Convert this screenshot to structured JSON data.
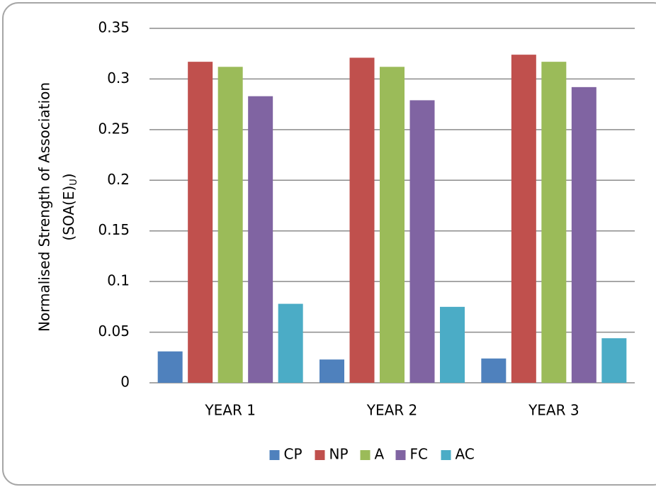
{
  "chart_data": {
    "type": "bar",
    "ylabel": "Normalised Strength of Association",
    "ylabel2": "(SOA(E)",
    "ylabel2_sub": "U",
    "ylabel2_end": ")",
    "categories": [
      "YEAR 1",
      "YEAR 2",
      "YEAR 3"
    ],
    "series": [
      {
        "name": "CP",
        "color": "#4f81bd",
        "values": [
          0.031,
          0.023,
          0.024
        ]
      },
      {
        "name": "NP",
        "color": "#c0504d",
        "values": [
          0.317,
          0.321,
          0.324
        ]
      },
      {
        "name": "A",
        "color": "#9bbb59",
        "values": [
          0.312,
          0.312,
          0.317
        ]
      },
      {
        "name": "FC",
        "color": "#8064a2",
        "values": [
          0.283,
          0.279,
          0.292
        ]
      },
      {
        "name": "AC",
        "color": "#4bacc6",
        "values": [
          0.078,
          0.075,
          0.044
        ]
      }
    ],
    "ylim": [
      0,
      0.35
    ],
    "yticks": [
      0,
      0.05,
      0.1,
      0.15,
      0.2,
      0.25,
      0.3,
      0.35
    ],
    "grid": true,
    "legend": "bottom"
  }
}
